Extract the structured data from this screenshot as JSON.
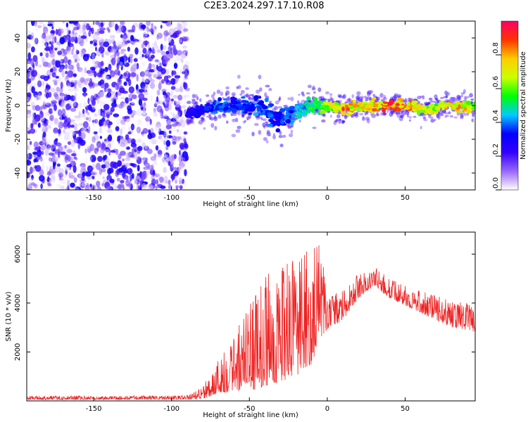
{
  "title": "C2E3.2024.297.17.10.R08",
  "chart_data": [
    {
      "type": "heatmap",
      "xlabel": "Height of straight line (km)",
      "ylabel": "Frequency (Hz)",
      "xlim": [
        -193,
        95
      ],
      "ylim": [
        -50,
        50
      ],
      "xticks": [
        -150,
        -100,
        -50,
        0,
        50
      ],
      "xtick_labels": [
        "-150",
        "-100",
        "-50",
        "0",
        "50"
      ],
      "yticks": [
        -40,
        -20,
        0,
        20,
        40
      ],
      "ytick_labels": [
        "-40",
        "-20",
        "0",
        "20",
        "40"
      ],
      "colorbar": {
        "label": "Normalized spectral amplitude",
        "range": [
          0.0,
          1.0
        ],
        "ticks": [
          0.0,
          0.2,
          0.4,
          0.6,
          0.8
        ],
        "tick_labels": [
          "0.0",
          "0.2",
          "0.4",
          "0.6",
          "0.8"
        ],
        "colormap": [
          "#ffffff",
          "#9966ff",
          "#3300ff",
          "#0000ff",
          "#00ccff",
          "#00ff00",
          "#ccff00",
          "#ffcc00",
          "#ff3300",
          "#ff0066"
        ]
      },
      "noise_region_x": [
        -193,
        -90
      ],
      "signal_track": [
        {
          "x": -90,
          "f": -5,
          "width": 6,
          "amp": 0.25
        },
        {
          "x": -80,
          "f": -3,
          "width": 5,
          "amp": 0.35
        },
        {
          "x": -70,
          "f": -1,
          "width": 5,
          "amp": 0.4
        },
        {
          "x": -60,
          "f": 0,
          "width": 6,
          "amp": 0.35
        },
        {
          "x": -50,
          "f": 0,
          "width": 6,
          "amp": 0.4
        },
        {
          "x": -40,
          "f": -3,
          "width": 8,
          "amp": 0.4
        },
        {
          "x": -30,
          "f": -9,
          "width": 8,
          "amp": 0.35
        },
        {
          "x": -20,
          "f": -3,
          "width": 6,
          "amp": 0.45
        },
        {
          "x": -10,
          "f": 0,
          "width": 5,
          "amp": 0.55
        },
        {
          "x": 0,
          "f": 0,
          "width": 4,
          "amp": 0.65
        },
        {
          "x": 10,
          "f": -2,
          "width": 4,
          "amp": 0.85
        },
        {
          "x": 20,
          "f": 0,
          "width": 4,
          "amp": 0.75
        },
        {
          "x": 30,
          "f": 0,
          "width": 4,
          "amp": 0.8
        },
        {
          "x": 40,
          "f": 0,
          "width": 4,
          "amp": 0.9
        },
        {
          "x": 50,
          "f": 0,
          "width": 4,
          "amp": 0.85
        },
        {
          "x": 60,
          "f": -2,
          "width": 4,
          "amp": 0.75
        },
        {
          "x": 70,
          "f": -2,
          "width": 4,
          "amp": 0.7
        },
        {
          "x": 80,
          "f": 0,
          "width": 4,
          "amp": 0.8
        },
        {
          "x": 95,
          "f": 0,
          "width": 4,
          "amp": 0.75
        }
      ]
    },
    {
      "type": "line",
      "xlabel": "Height of straight line (km)",
      "ylabel": "SNR (10 * v/v)",
      "xlim": [
        -193,
        95
      ],
      "ylim": [
        0,
        6900
      ],
      "xticks": [
        -150,
        -100,
        -50,
        0,
        50
      ],
      "xtick_labels": [
        "-150",
        "-100",
        "-50",
        "0",
        "50"
      ],
      "yticks": [
        2000,
        4000,
        6000
      ],
      "ytick_labels": [
        "2000",
        "4000",
        "6000"
      ],
      "color": "#ee2222",
      "envelope": [
        {
          "x": -193,
          "base": 50,
          "amp": 150
        },
        {
          "x": -90,
          "base": 60,
          "amp": 160
        },
        {
          "x": -80,
          "base": 80,
          "amp": 500
        },
        {
          "x": -70,
          "base": 300,
          "amp": 1500
        },
        {
          "x": -60,
          "base": 400,
          "amp": 2400
        },
        {
          "x": -50,
          "base": 400,
          "amp": 3600
        },
        {
          "x": -40,
          "base": 600,
          "amp": 4500
        },
        {
          "x": -30,
          "base": 800,
          "amp": 4800
        },
        {
          "x": -20,
          "base": 1000,
          "amp": 4800
        },
        {
          "x": -10,
          "base": 1500,
          "amp": 4800
        },
        {
          "x": -5,
          "base": 2500,
          "amp": 4300
        },
        {
          "x": 0,
          "base": 2900,
          "amp": 1400
        },
        {
          "x": 10,
          "base": 3300,
          "amp": 1200
        },
        {
          "x": 20,
          "base": 4200,
          "amp": 1000
        },
        {
          "x": 30,
          "base": 4700,
          "amp": 800
        },
        {
          "x": 40,
          "base": 4200,
          "amp": 800
        },
        {
          "x": 50,
          "base": 3900,
          "amp": 800
        },
        {
          "x": 60,
          "base": 3600,
          "amp": 900
        },
        {
          "x": 70,
          "base": 3300,
          "amp": 1000
        },
        {
          "x": 80,
          "base": 3000,
          "amp": 1100
        },
        {
          "x": 90,
          "base": 2900,
          "amp": 1100
        },
        {
          "x": 95,
          "base": 2800,
          "amp": 1000
        }
      ]
    }
  ]
}
